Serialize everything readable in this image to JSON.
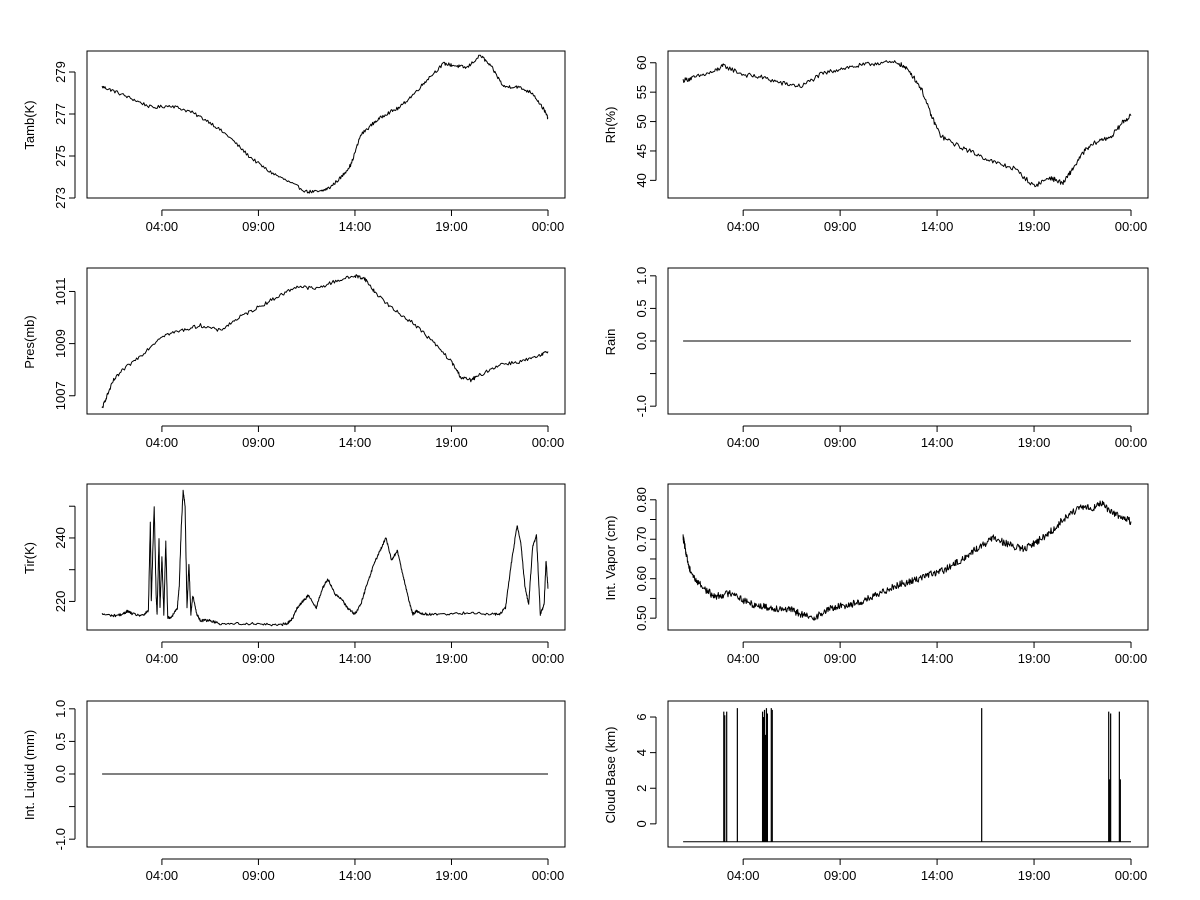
{
  "chart_data": [
    {
      "type": "line",
      "ylabel": "Tamb(K)",
      "x_ticks": [
        "04:00",
        "09:00",
        "14:00",
        "19:00",
        "00:00"
      ],
      "x_tick_hours": [
        4,
        9,
        14,
        19,
        24
      ],
      "xlim": [
        0,
        24.9
      ],
      "ylim": [
        273,
        280
      ],
      "y_ticks": [
        273,
        275,
        277,
        279
      ],
      "y_tick_labels": [
        "273",
        "275",
        "277",
        "279"
      ],
      "series": [
        {
          "color": "#000000",
          "noise": 0.08,
          "x": [
            0.9,
            1.5,
            2.5,
            3.5,
            4.5,
            5.5,
            6.5,
            7.5,
            8.5,
            9.5,
            10.5,
            11.5,
            12.2,
            12.7,
            13.3,
            13.8,
            14.3,
            15.0,
            15.6,
            16.3,
            17.1,
            17.8,
            18.6,
            19.2,
            19.8,
            20.5,
            21.1,
            21.7,
            22.4,
            23.2,
            23.8,
            24.0
          ],
          "y": [
            278.3,
            278.1,
            277.7,
            277.3,
            277.4,
            277.1,
            276.6,
            275.9,
            275.0,
            274.3,
            273.8,
            273.3,
            273.3,
            273.5,
            274.0,
            274.6,
            276.0,
            276.6,
            277.0,
            277.3,
            278.0,
            278.7,
            279.4,
            279.3,
            279.2,
            279.8,
            279.2,
            278.3,
            278.3,
            278.0,
            277.2,
            276.8
          ]
        }
      ]
    },
    {
      "type": "line",
      "ylabel": "Rh(%)",
      "x_ticks": [
        "04:00",
        "09:00",
        "14:00",
        "19:00",
        "00:00"
      ],
      "x_tick_hours": [
        4,
        9,
        14,
        19,
        24
      ],
      "xlim": [
        0,
        24.9
      ],
      "ylim": [
        37,
        62
      ],
      "y_ticks": [
        40,
        45,
        50,
        55,
        60
      ],
      "y_tick_labels": [
        "40",
        "45",
        "50",
        "55",
        "60"
      ],
      "series": [
        {
          "color": "#000000",
          "noise": 0.4,
          "x": [
            0.9,
            1.5,
            2.5,
            3.0,
            4.0,
            5.0,
            6.0,
            7.0,
            8.0,
            9.0,
            10.0,
            11.0,
            12.0,
            12.6,
            13.2,
            13.7,
            14.2,
            15.0,
            16.0,
            17.0,
            18.0,
            19.0,
            19.8,
            20.5,
            21.0,
            21.6,
            22.2,
            23.0,
            23.6,
            24.0
          ],
          "y": [
            57.0,
            57.5,
            58.5,
            59.5,
            58.0,
            57.5,
            56.5,
            56.0,
            58.0,
            59.0,
            59.5,
            60.0,
            60.0,
            58.5,
            55.5,
            51.0,
            47.5,
            46.0,
            44.5,
            43.0,
            42.0,
            39.0,
            40.5,
            39.5,
            42.0,
            45.0,
            46.5,
            47.5,
            50.0,
            51.0
          ]
        }
      ]
    },
    {
      "type": "line",
      "ylabel": "Pres(mb)",
      "x_ticks": [
        "04:00",
        "09:00",
        "14:00",
        "19:00",
        "00:00"
      ],
      "x_tick_hours": [
        4,
        9,
        14,
        19,
        24
      ],
      "xlim": [
        0,
        24.9
      ],
      "ylim": [
        1006.3,
        1011.9
      ],
      "y_ticks": [
        1007,
        1009,
        1011
      ],
      "y_tick_labels": [
        "1007",
        "1009",
        "1011"
      ],
      "series": [
        {
          "color": "#000000",
          "noise": 0.07,
          "x": [
            0.9,
            1.1,
            1.5,
            2.0,
            3.0,
            4.0,
            5.0,
            6.0,
            7.0,
            8.0,
            9.0,
            10.0,
            11.0,
            12.0,
            13.0,
            14.0,
            14.5,
            15.0,
            16.0,
            17.0,
            18.0,
            19.0,
            19.5,
            20.0,
            20.5,
            21.5,
            22.5,
            23.5,
            24.0
          ],
          "y": [
            1006.5,
            1006.9,
            1007.6,
            1008.0,
            1008.6,
            1009.3,
            1009.5,
            1009.7,
            1009.5,
            1010.0,
            1010.4,
            1010.8,
            1011.2,
            1011.1,
            1011.4,
            1011.6,
            1011.5,
            1011.0,
            1010.3,
            1009.8,
            1009.1,
            1008.3,
            1007.7,
            1007.6,
            1007.8,
            1008.2,
            1008.3,
            1008.5,
            1008.7
          ]
        }
      ]
    },
    {
      "type": "line",
      "ylabel": "Rain",
      "x_ticks": [
        "04:00",
        "09:00",
        "14:00",
        "19:00",
        "00:00"
      ],
      "x_tick_hours": [
        4,
        9,
        14,
        19,
        24
      ],
      "xlim": [
        0,
        24.9
      ],
      "ylim": [
        -1.12,
        1.12
      ],
      "y_ticks": [
        -1.0,
        -0.5,
        0.0,
        0.5,
        1.0
      ],
      "y_tick_labels": [
        "-1.0",
        "",
        "0.0",
        "0.5",
        "1.0"
      ],
      "series": [
        {
          "color": "#000000",
          "noise": 0,
          "x": [
            0.9,
            24.0
          ],
          "y": [
            0,
            0
          ]
        }
      ]
    },
    {
      "type": "line",
      "ylabel": "Tir(K)",
      "x_ticks": [
        "04:00",
        "09:00",
        "14:00",
        "19:00",
        "00:00"
      ],
      "x_tick_hours": [
        4,
        9,
        14,
        19,
        24
      ],
      "xlim": [
        0,
        24.9
      ],
      "ylim": [
        211,
        257
      ],
      "y_ticks": [
        220,
        230,
        240,
        250
      ],
      "y_tick_labels": [
        "220",
        "",
        "240",
        ""
      ],
      "series": [
        {
          "color": "#000000",
          "noise": 0.4,
          "x": [
            0.9,
            1.5,
            2.0,
            2.2,
            2.5,
            3.0,
            3.3,
            3.4,
            3.45,
            3.6,
            3.7,
            3.75,
            3.85,
            3.9,
            4.0,
            4.1,
            4.2,
            4.3,
            4.5,
            4.8,
            4.9,
            5.0,
            5.1,
            5.2,
            5.3,
            5.4,
            5.5,
            5.6,
            5.8,
            6.0,
            6.5,
            7.0,
            8.0,
            9.0,
            10.0,
            10.5,
            10.8,
            11.0,
            11.3,
            11.6,
            12.0,
            12.3,
            12.6,
            13.0,
            13.3,
            13.6,
            14.0,
            14.3,
            14.6,
            15.0,
            15.3,
            15.6,
            15.9,
            16.2,
            16.5,
            16.8,
            17.0,
            17.2,
            17.5,
            18.0,
            19.0,
            20.0,
            21.0,
            21.5,
            21.8,
            22.1,
            22.4,
            22.6,
            22.8,
            23.0,
            23.2,
            23.4,
            23.6,
            23.8,
            23.9,
            24.0
          ],
          "y": [
            216,
            215.5,
            216,
            217,
            216,
            215.5,
            217,
            245,
            220,
            250,
            222,
            216,
            240,
            218,
            234,
            216,
            239,
            215,
            215,
            218,
            225,
            243,
            255,
            250,
            218,
            232,
            216,
            222,
            216,
            214,
            214,
            213,
            213,
            213,
            212.5,
            213,
            215,
            218,
            220,
            222,
            218,
            224,
            227,
            222,
            221,
            218,
            216,
            219,
            225,
            232,
            236,
            240,
            233,
            236,
            228,
            220,
            216,
            217,
            216,
            216,
            216,
            216.5,
            216,
            216,
            218,
            232,
            244,
            238,
            225,
            219,
            237,
            241,
            216,
            219,
            233,
            224
          ]
        }
      ]
    },
    {
      "type": "line",
      "ylabel": "Int. Vapor (cm)",
      "x_ticks": [
        "04:00",
        "09:00",
        "14:00",
        "19:00",
        "00:00"
      ],
      "x_tick_hours": [
        4,
        9,
        14,
        19,
        24
      ],
      "xlim": [
        0,
        24.9
      ],
      "ylim": [
        0.47,
        0.84
      ],
      "y_ticks": [
        0.5,
        0.55,
        0.6,
        0.65,
        0.7,
        0.75,
        0.8
      ],
      "y_tick_labels": [
        "0.50",
        "",
        "0.60",
        "",
        "0.70",
        "",
        "0.80"
      ],
      "series": [
        {
          "color": "#000000",
          "noise": 0.009,
          "x": [
            0.9,
            1.0,
            1.2,
            1.5,
            2.0,
            2.5,
            3.0,
            3.5,
            4.0,
            4.5,
            5.0,
            5.5,
            6.0,
            6.5,
            7.0,
            7.5,
            8.0,
            8.5,
            9.0,
            9.5,
            10.0,
            10.5,
            11.0,
            11.5,
            12.0,
            12.5,
            13.0,
            13.5,
            14.0,
            14.5,
            15.0,
            15.5,
            16.0,
            16.5,
            17.0,
            17.5,
            18.0,
            18.5,
            19.0,
            19.5,
            20.0,
            20.5,
            21.0,
            21.5,
            22.0,
            22.5,
            23.0,
            23.5,
            24.0
          ],
          "y": [
            0.705,
            0.68,
            0.63,
            0.6,
            0.575,
            0.555,
            0.56,
            0.565,
            0.545,
            0.535,
            0.53,
            0.525,
            0.525,
            0.52,
            0.51,
            0.5,
            0.51,
            0.525,
            0.53,
            0.535,
            0.54,
            0.55,
            0.56,
            0.575,
            0.585,
            0.59,
            0.6,
            0.61,
            0.615,
            0.625,
            0.64,
            0.655,
            0.675,
            0.69,
            0.705,
            0.69,
            0.68,
            0.675,
            0.69,
            0.705,
            0.725,
            0.75,
            0.77,
            0.78,
            0.78,
            0.79,
            0.77,
            0.755,
            0.745
          ]
        }
      ]
    },
    {
      "type": "line",
      "ylabel": "Int. Liquid (mm)",
      "x_ticks": [
        "04:00",
        "09:00",
        "14:00",
        "19:00",
        "00:00"
      ],
      "x_tick_hours": [
        4,
        9,
        14,
        19,
        24
      ],
      "xlim": [
        0,
        24.9
      ],
      "ylim": [
        -1.12,
        1.12
      ],
      "y_ticks": [
        -1.0,
        -0.5,
        0.0,
        0.5,
        1.0
      ],
      "y_tick_labels": [
        "-1.0",
        "",
        "0.0",
        "0.5",
        "1.0"
      ],
      "series": [
        {
          "color": "#000000",
          "noise": 0,
          "x": [
            0.9,
            24.0
          ],
          "y": [
            0,
            0
          ]
        }
      ]
    },
    {
      "type": "line",
      "ylabel": "Cloud Base (km)",
      "x_ticks": [
        "04:00",
        "09:00",
        "14:00",
        "19:00",
        "00:00"
      ],
      "x_tick_hours": [
        4,
        9,
        14,
        19,
        24
      ],
      "xlim": [
        0,
        24.9
      ],
      "ylim": [
        -1.3,
        6.9
      ],
      "y_ticks": [
        0,
        2,
        4,
        6
      ],
      "y_tick_labels": [
        "0",
        "2",
        "4",
        "6"
      ],
      "baseline": -1.0,
      "spikes": [
        {
          "x": 3.0,
          "y": 6.3
        },
        {
          "x": 3.05,
          "y": 6.1
        },
        {
          "x": 3.15,
          "y": 6.3
        },
        {
          "x": 3.7,
          "y": 6.5
        },
        {
          "x": 5.0,
          "y": 6.3
        },
        {
          "x": 5.05,
          "y": 6.0
        },
        {
          "x": 5.1,
          "y": 6.4
        },
        {
          "x": 5.15,
          "y": 5.0
        },
        {
          "x": 5.2,
          "y": 6.5
        },
        {
          "x": 5.25,
          "y": 6.2
        },
        {
          "x": 5.45,
          "y": 6.5
        },
        {
          "x": 5.5,
          "y": 6.4
        },
        {
          "x": 16.3,
          "y": 6.5
        },
        {
          "x": 22.85,
          "y": 6.3
        },
        {
          "x": 22.9,
          "y": 2.5
        },
        {
          "x": 22.95,
          "y": 6.2
        },
        {
          "x": 23.4,
          "y": 6.3
        },
        {
          "x": 23.45,
          "y": 2.5
        }
      ],
      "series": [
        {
          "color": "#000000",
          "noise": 0,
          "x": [
            0.9,
            24.0
          ],
          "y": [
            -1.0,
            -1.0
          ]
        }
      ]
    }
  ]
}
